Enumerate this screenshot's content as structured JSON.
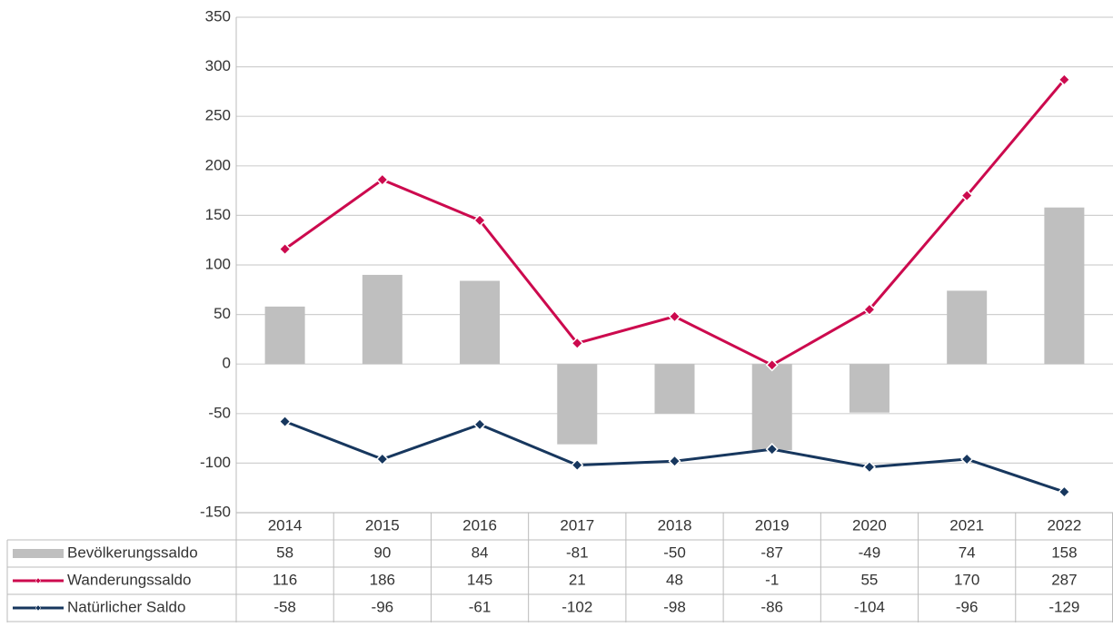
{
  "chart_data": {
    "type": "combo",
    "categories": [
      "2014",
      "2015",
      "2016",
      "2017",
      "2018",
      "2019",
      "2020",
      "2021",
      "2022"
    ],
    "series": [
      {
        "name": "Bevölkerungssaldo",
        "type": "bar",
        "color": "#bfbfbf",
        "values": [
          58,
          90,
          84,
          -81,
          -50,
          -87,
          -49,
          74,
          158
        ]
      },
      {
        "name": "Wanderungssaldo",
        "type": "line",
        "color": "#cc0a4e",
        "values": [
          116,
          186,
          145,
          21,
          48,
          -1,
          55,
          170,
          287
        ]
      },
      {
        "name": "Natürlicher Saldo",
        "type": "line",
        "color": "#17375e",
        "values": [
          -58,
          -96,
          -61,
          -102,
          -98,
          -86,
          -104,
          -96,
          -129
        ]
      }
    ],
    "ylim": [
      -150,
      350
    ],
    "yticks": [
      -150,
      -100,
      -50,
      0,
      50,
      100,
      150,
      200,
      250,
      300,
      350
    ],
    "grid": true
  }
}
